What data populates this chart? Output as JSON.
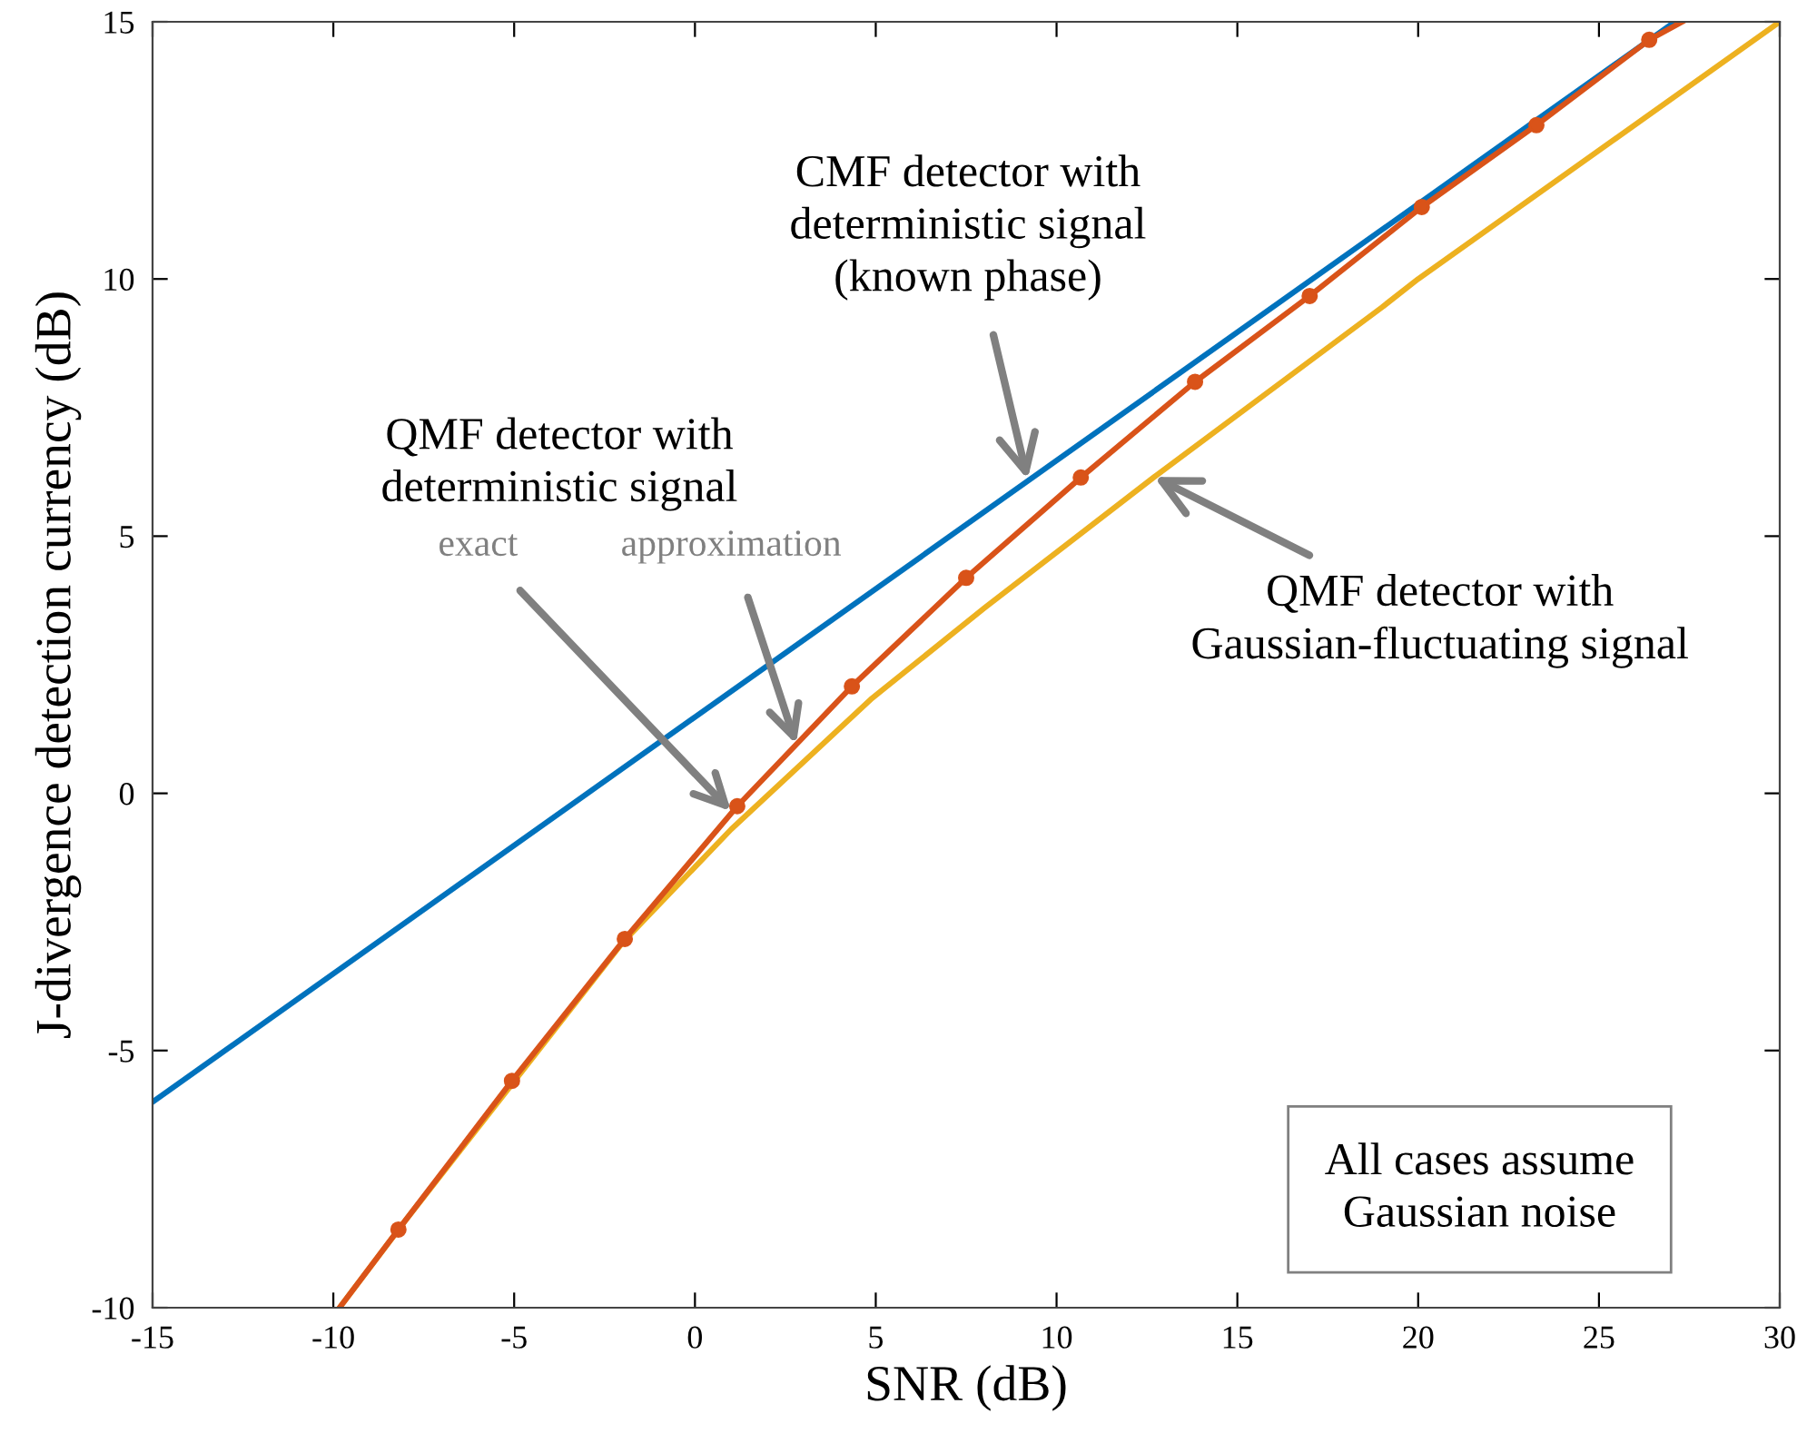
{
  "chart_data": {
    "type": "line",
    "xlabel": "SNR (dB)",
    "ylabel": "J-divergence detection currency (dB)",
    "xlim": [
      -15,
      30
    ],
    "ylim": [
      -10,
      15
    ],
    "xticks": [
      -15,
      -10,
      -5,
      0,
      5,
      10,
      15,
      20,
      25,
      30
    ],
    "yticks": [
      -10,
      -5,
      0,
      5,
      10,
      15
    ],
    "grid": false,
    "legend": false,
    "series": [
      {
        "color": "#0072bd",
        "x": [
          -15,
          27.1
        ],
        "values": [
          -6,
          15
        ]
      },
      {
        "color": "#edb120",
        "x": [
          -9.83,
          -8,
          -5,
          -2,
          1,
          4.9,
          8,
          12.7,
          19,
          20,
          30
        ],
        "values": [
          -10,
          -8.3,
          -5.6,
          -2.9,
          -0.7,
          1.85,
          3.6,
          6.15,
          9.45,
          10.0,
          15
        ]
      },
      {
        "color": "#d95319",
        "x": [
          -9.83,
          -8.2,
          -5.06,
          -1.94,
          1.17,
          4.34,
          7.5,
          10.67,
          13.83,
          17.0,
          20.1,
          23.27,
          26.39,
          27.3
        ],
        "values": [
          -10,
          -8.48,
          -5.59,
          -2.83,
          -0.25,
          2.08,
          4.19,
          6.14,
          8.0,
          9.67,
          11.4,
          12.99,
          14.65,
          15
        ]
      },
      {
        "type": "scatter",
        "marker": "circle",
        "color": "#d95319",
        "x": [
          -8.2,
          -5.06,
          -1.94,
          1.17,
          4.34,
          7.5,
          10.67,
          13.83,
          17.0,
          20.1,
          23.27,
          26.39
        ],
        "values": [
          -8.48,
          -5.59,
          -2.83,
          -0.25,
          2.08,
          4.19,
          6.14,
          8.0,
          9.67,
          11.4,
          12.99,
          14.65
        ]
      }
    ],
    "annotations": [
      {
        "text": "CMF detector with\ndeterministic signal\n(known phase)",
        "x": 9.2,
        "y": 6.1
      },
      "QMF detector with\ndeterministic signal",
      {
        "text": "exact",
        "x": 1.0,
        "y": -0.35
      },
      {
        "text": "approximation",
        "x": 2.8,
        "y": 0.95
      },
      {
        "text": "QMF detector with\nGaussian-fluctuating signal",
        "x": 12.7,
        "y": 6.15
      },
      "All cases assume\nGaussian noise"
    ]
  }
}
